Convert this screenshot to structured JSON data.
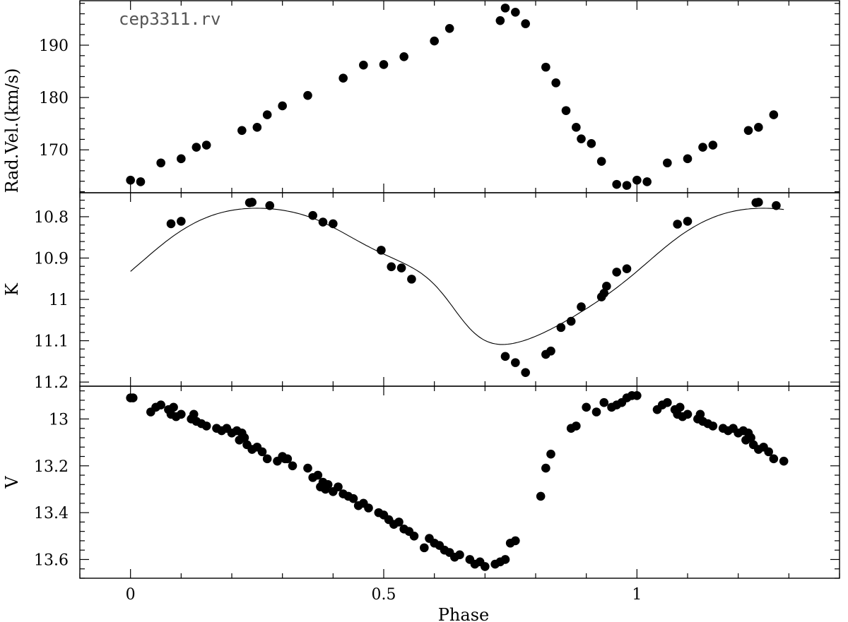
{
  "chart_data": {
    "type": "scatter",
    "title": "cep3311.rv",
    "xlabel": "Phase",
    "xlim": [
      -0.1,
      1.4
    ],
    "xticks": [
      0,
      0.5,
      1
    ],
    "xtick_labels": [
      "0",
      "0.5",
      "1"
    ],
    "panels": [
      {
        "name": "rv",
        "ylabel": "Rad.Vel.(km/s)",
        "ylim": [
          161.8,
          198.5
        ],
        "inverted": false,
        "yticks": [
          170,
          180,
          190
        ],
        "ytick_labels": [
          "170",
          "180",
          "190"
        ],
        "x": [
          0.0,
          0.02,
          0.06,
          0.1,
          0.13,
          0.15,
          0.22,
          0.25,
          0.27,
          0.3,
          0.35,
          0.42,
          0.46,
          0.5,
          0.54,
          0.6,
          0.63,
          0.73,
          0.74,
          0.76,
          0.78,
          0.82,
          0.84,
          0.86,
          0.88,
          0.89,
          0.91,
          0.93,
          0.96,
          0.98,
          1.0,
          1.02,
          1.06,
          1.1,
          1.13,
          1.15,
          1.22,
          1.24,
          1.27
        ],
        "y": [
          164.2,
          163.9,
          167.5,
          168.3,
          170.5,
          170.9,
          173.7,
          174.3,
          176.7,
          178.4,
          180.4,
          183.7,
          186.2,
          186.3,
          187.8,
          190.8,
          193.2,
          194.7,
          197.1,
          196.3,
          194.1,
          185.8,
          182.8,
          177.5,
          174.3,
          172.1,
          171.2,
          167.8,
          163.4,
          163.2,
          164.2,
          163.9,
          167.5,
          168.3,
          170.5,
          170.9,
          173.7,
          174.3,
          176.7
        ]
      },
      {
        "name": "K",
        "ylabel": "K",
        "ylim": [
          11.21,
          10.742
        ],
        "inverted": true,
        "yticks": [
          10.8,
          10.9,
          11,
          11.1,
          11.2
        ],
        "ytick_labels": [
          "10.8",
          "10.9",
          "11",
          "11.1",
          "11.2"
        ],
        "x": [
          0.08,
          0.1,
          0.235,
          0.24,
          0.275,
          0.36,
          0.38,
          0.4,
          0.495,
          0.515,
          0.535,
          0.555,
          0.74,
          0.76,
          0.78,
          0.82,
          0.83,
          0.85,
          0.87,
          0.89,
          0.93,
          0.935,
          0.94,
          0.96,
          0.98,
          1.08,
          1.1,
          1.235,
          1.24,
          1.275
        ],
        "y": [
          10.817,
          10.811,
          10.766,
          10.765,
          10.773,
          10.797,
          10.813,
          10.817,
          10.881,
          10.921,
          10.924,
          10.951,
          11.138,
          11.153,
          11.177,
          11.133,
          11.125,
          11.068,
          11.053,
          11.018,
          10.994,
          10.985,
          10.968,
          10.934,
          10.926,
          10.818,
          10.811,
          10.766,
          10.765,
          10.773
        ]
      },
      {
        "name": "V",
        "ylabel": "V",
        "ylim": [
          13.68,
          12.86
        ],
        "inverted": true,
        "yticks": [
          13,
          13.2,
          13.4,
          13.6
        ],
        "ytick_labels": [
          "13",
          "13.2",
          "13.4",
          "13.6"
        ],
        "x": [
          0.0,
          0.005,
          0.04,
          0.05,
          0.06,
          0.075,
          0.08,
          0.085,
          0.09,
          0.1,
          0.12,
          0.125,
          0.13,
          0.14,
          0.15,
          0.17,
          0.18,
          0.19,
          0.2,
          0.21,
          0.215,
          0.22,
          0.225,
          0.23,
          0.24,
          0.25,
          0.26,
          0.27,
          0.29,
          0.3,
          0.305,
          0.31,
          0.32,
          0.35,
          0.36,
          0.37,
          0.375,
          0.38,
          0.385,
          0.39,
          0.4,
          0.41,
          0.42,
          0.43,
          0.44,
          0.45,
          0.46,
          0.47,
          0.49,
          0.5,
          0.51,
          0.52,
          0.53,
          0.54,
          0.55,
          0.56,
          0.58,
          0.59,
          0.6,
          0.61,
          0.62,
          0.63,
          0.64,
          0.65,
          0.67,
          0.68,
          0.69,
          0.7,
          0.72,
          0.73,
          0.74,
          0.75,
          0.76,
          0.81,
          0.82,
          0.83,
          0.87,
          0.88,
          0.9,
          0.92,
          0.935,
          0.95,
          0.96,
          0.97,
          0.98,
          0.99,
          1.0,
          1.04,
          1.05,
          1.06,
          1.075,
          1.08,
          1.085,
          1.09,
          1.1,
          1.12,
          1.125,
          1.13,
          1.14,
          1.15,
          1.17,
          1.18,
          1.19,
          1.2,
          1.21,
          1.215,
          1.22,
          1.225,
          1.23,
          1.24,
          1.25,
          1.26,
          1.27,
          1.29
        ],
        "y": [
          12.91,
          12.91,
          12.97,
          12.95,
          12.94,
          12.96,
          12.98,
          12.95,
          12.99,
          12.98,
          13.0,
          12.98,
          13.01,
          13.02,
          13.03,
          13.04,
          13.05,
          13.04,
          13.06,
          13.05,
          13.09,
          13.06,
          13.08,
          13.11,
          13.13,
          13.12,
          13.14,
          13.17,
          13.18,
          13.16,
          13.17,
          13.17,
          13.2,
          13.21,
          13.25,
          13.24,
          13.29,
          13.27,
          13.3,
          13.28,
          13.31,
          13.29,
          13.32,
          13.33,
          13.34,
          13.37,
          13.36,
          13.38,
          13.4,
          13.41,
          13.43,
          13.45,
          13.44,
          13.47,
          13.48,
          13.5,
          13.55,
          13.51,
          13.53,
          13.54,
          13.56,
          13.57,
          13.59,
          13.58,
          13.6,
          13.62,
          13.61,
          13.63,
          13.62,
          13.61,
          13.6,
          13.53,
          13.52,
          13.33,
          13.21,
          13.15,
          13.04,
          13.03,
          12.95,
          12.97,
          12.93,
          12.95,
          12.94,
          12.93,
          12.91,
          12.9,
          12.9,
          12.96,
          12.94,
          12.93,
          12.96,
          12.98,
          12.95,
          12.99,
          12.98,
          13.0,
          12.98,
          13.01,
          13.02,
          13.03,
          13.04,
          13.05,
          13.04,
          13.06,
          13.05,
          13.09,
          13.06,
          13.08,
          13.11,
          13.13,
          13.12,
          13.14,
          13.17,
          13.18
        ]
      }
    ]
  }
}
